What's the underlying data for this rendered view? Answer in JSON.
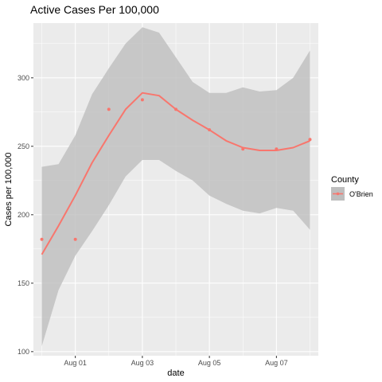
{
  "chart_data": {
    "type": "line",
    "title": "Active Cases Per 100,000",
    "xlabel": "date",
    "ylabel": "Cases per 100,000",
    "x_tick_labels": [
      "Aug 01",
      "Aug 03",
      "Aug 05",
      "Aug 07"
    ],
    "y_ticks": [
      100,
      150,
      200,
      250,
      300
    ],
    "y_tick_labels": [
      "100",
      "150",
      "200",
      "250",
      "300"
    ],
    "xlim": [
      "2020-07-30 18:00",
      "2020-08-08 06:00"
    ],
    "ylim": [
      97,
      340
    ],
    "grid": true,
    "legend": {
      "title": "County",
      "position": "right"
    },
    "colors": {
      "series": "#F8766D",
      "band": "#BEBEBE",
      "panel": "#EBEBEB",
      "grid": "#FFFFFF"
    },
    "series": [
      {
        "name": "O'Brien",
        "points": {
          "x": [
            "2020-07-31",
            "2020-08-01",
            "2020-08-02",
            "2020-08-03",
            "2020-08-04",
            "2020-08-05",
            "2020-08-06",
            "2020-08-07",
            "2020-08-08"
          ],
          "y": [
            182,
            182,
            277,
            284,
            277,
            262,
            248,
            248,
            255
          ]
        },
        "smooth": {
          "x": [
            "2020-07-31 00:00",
            "2020-07-31 12:00",
            "2020-08-01 00:00",
            "2020-08-01 12:00",
            "2020-08-02 00:00",
            "2020-08-02 12:00",
            "2020-08-03 00:00",
            "2020-08-03 12:00",
            "2020-08-04 00:00",
            "2020-08-04 12:00",
            "2020-08-05 00:00",
            "2020-08-05 12:00",
            "2020-08-06 00:00",
            "2020-08-06 12:00",
            "2020-08-07 00:00",
            "2020-08-07 12:00",
            "2020-08-08 00:00"
          ],
          "y": [
            171,
            192,
            214,
            238,
            258,
            277,
            289,
            287,
            277,
            269,
            262,
            254,
            249,
            247,
            247,
            249,
            254
          ],
          "lower": [
            104,
            145,
            170,
            188,
            207,
            228,
            240,
            240,
            232,
            225,
            214,
            208,
            203,
            201,
            205,
            203,
            189
          ],
          "upper": [
            235,
            237,
            258,
            288,
            307,
            325,
            337,
            333,
            315,
            297,
            289,
            289,
            293,
            290,
            291,
            300,
            320
          ]
        }
      }
    ]
  }
}
